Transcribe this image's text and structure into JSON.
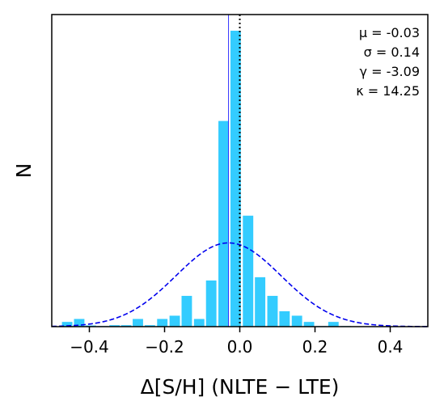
{
  "chart_data": {
    "type": "bar",
    "xlabel": "Δ[S/H] (NLTE − LTE)",
    "ylabel": "N",
    "xlim": [
      -0.5,
      0.5
    ],
    "ylim": [
      0,
      1.0
    ],
    "xticks": [
      "−0.4",
      "−0.2",
      "0.0",
      "0.2",
      "0.4"
    ],
    "xtick_values": [
      -0.4,
      -0.2,
      0.0,
      0.2,
      0.4
    ],
    "bin_width": 0.032,
    "bins": [
      {
        "center": -0.459,
        "value": 0.016
      },
      {
        "center": -0.427,
        "value": 0.026
      },
      {
        "center": -0.396,
        "value": 0.004
      },
      {
        "center": -0.365,
        "value": 0.002
      },
      {
        "center": -0.333,
        "value": 0.005
      },
      {
        "center": -0.302,
        "value": 0.005
      },
      {
        "center": -0.271,
        "value": 0.026
      },
      {
        "center": -0.239,
        "value": 0.005
      },
      {
        "center": -0.206,
        "value": 0.026
      },
      {
        "center": -0.173,
        "value": 0.037
      },
      {
        "center": -0.141,
        "value": 0.104
      },
      {
        "center": -0.108,
        "value": 0.026
      },
      {
        "center": -0.076,
        "value": 0.156
      },
      {
        "center": -0.043,
        "value": 0.695
      },
      {
        "center": -0.011,
        "value": 1.0
      },
      {
        "center": 0.022,
        "value": 0.375
      },
      {
        "center": 0.054,
        "value": 0.167
      },
      {
        "center": 0.087,
        "value": 0.104
      },
      {
        "center": 0.119,
        "value": 0.052
      },
      {
        "center": 0.152,
        "value": 0.037
      },
      {
        "center": 0.184,
        "value": 0.016
      },
      {
        "center": 0.217,
        "value": 0.002
      },
      {
        "center": 0.249,
        "value": 0.016
      },
      {
        "center": 0.282,
        "value": 0.002
      }
    ],
    "gaussian": {
      "mu": -0.03,
      "sigma": 0.14,
      "peak": 0.283
    },
    "mean_line_x": -0.03,
    "zero_line_x": 0.0,
    "annotations": [
      "μ = -0.03",
      "σ = 0.14",
      "γ = -3.09",
      "κ = 14.25"
    ],
    "colors": {
      "bars": "#33ccff",
      "gaussian": "#0000ee",
      "mean_line": "#3333ff",
      "zero_line": "#000000"
    }
  }
}
